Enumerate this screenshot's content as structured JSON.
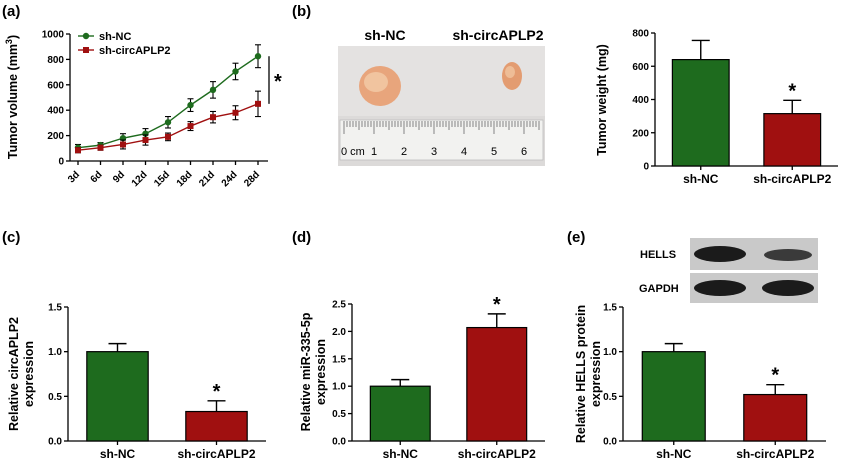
{
  "panels": {
    "a": {
      "label": "(a)"
    },
    "b": {
      "label": "(b)"
    },
    "c": {
      "label": "(c)"
    },
    "d": {
      "label": "(d)"
    },
    "e": {
      "label": "(e)"
    }
  },
  "photo": {
    "label_left": "sh-NC",
    "label_right": "sh-circAPLP2",
    "ruler_unit": "0 cm",
    "ruler_numbers": [
      "1",
      "2",
      "3",
      "4",
      "5",
      "6"
    ]
  },
  "blot": {
    "rows": [
      "HELLS",
      "GAPDH"
    ]
  },
  "colors": {
    "nc": "#1e6b1e",
    "circ": "#a01010"
  },
  "chart_data": [
    {
      "type": "line",
      "panel": "a",
      "title": "",
      "xlabel": "",
      "ylabel": "Tumor volume (mm",
      "ylabel_sup": "3",
      "ylabel_end": ")",
      "categories": [
        "3d",
        "6d",
        "9d",
        "12d",
        "15d",
        "18d",
        "21d",
        "24d",
        "28d"
      ],
      "ylim": [
        0,
        1000
      ],
      "yticks": [
        "0",
        "200",
        "400",
        "600",
        "800",
        "1000"
      ],
      "legend_position": "top-left",
      "significance": "*",
      "series": [
        {
          "name": "sh-NC",
          "marker": "circle",
          "values": [
            105,
            125,
            180,
            215,
            305,
            440,
            560,
            705,
            825
          ],
          "errors": [
            25,
            20,
            35,
            40,
            45,
            50,
            65,
            65,
            90
          ]
        },
        {
          "name": "sh-circAPLP2",
          "marker": "square",
          "values": [
            85,
            105,
            130,
            165,
            190,
            275,
            345,
            380,
            450
          ],
          "errors": [
            20,
            20,
            35,
            40,
            30,
            35,
            45,
            55,
            100
          ]
        }
      ]
    },
    {
      "type": "bar",
      "panel": "b",
      "title": "",
      "xlabel": "",
      "ylabel": "Tumor weight (mg)",
      "categories": [
        "sh-NC",
        "sh-circAPLP2"
      ],
      "values": [
        640,
        315
      ],
      "errors": [
        115,
        80
      ],
      "ylim": [
        0,
        800
      ],
      "yticks": [
        "0",
        "200",
        "400",
        "600",
        "800"
      ],
      "significance": [
        "",
        "*"
      ]
    },
    {
      "type": "bar",
      "panel": "c",
      "title": "",
      "xlabel": "",
      "ylabel": [
        "Relative circAPLP2",
        "expression"
      ],
      "categories": [
        "sh-NC",
        "sh-circAPLP2"
      ],
      "values": [
        1.0,
        0.33
      ],
      "errors": [
        0.09,
        0.12
      ],
      "ylim": [
        0,
        1.5
      ],
      "yticks": [
        "0.0",
        "0.5",
        "1.0",
        "1.5"
      ],
      "significance": [
        "",
        "*"
      ]
    },
    {
      "type": "bar",
      "panel": "d",
      "title": "",
      "xlabel": "",
      "ylabel": [
        "Relative miR-335-5p",
        "expression"
      ],
      "categories": [
        "sh-NC",
        "sh-circAPLP2"
      ],
      "values": [
        1.0,
        2.07
      ],
      "errors": [
        0.12,
        0.25
      ],
      "ylim": [
        0,
        2.5
      ],
      "yticks": [
        "0.0",
        "0.5",
        "1.0",
        "1.5",
        "2.0",
        "2.5"
      ],
      "significance": [
        "",
        "*"
      ]
    },
    {
      "type": "bar",
      "panel": "e",
      "title": "",
      "xlabel": "",
      "ylabel": [
        "Relative HELLS protein",
        "expression"
      ],
      "categories": [
        "sh-NC",
        "sh-circAPLP2"
      ],
      "values": [
        1.0,
        0.52
      ],
      "errors": [
        0.09,
        0.11
      ],
      "ylim": [
        0,
        1.5
      ],
      "yticks": [
        "0.0",
        "0.5",
        "1.0",
        "1.5"
      ],
      "significance": [
        "",
        "*"
      ]
    }
  ]
}
